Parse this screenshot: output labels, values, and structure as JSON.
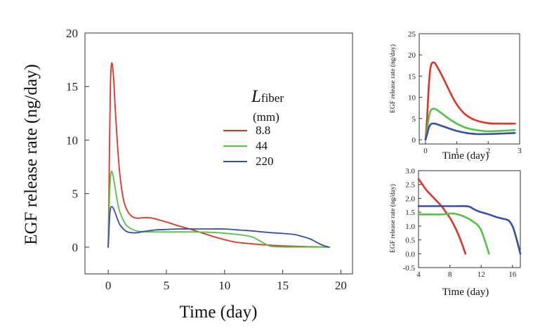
{
  "colors": {
    "red": "#e03327",
    "green": "#55c244",
    "blue": "#3650a2",
    "axis": "#333333"
  },
  "chart_data": [
    {
      "id": "main",
      "type": "line",
      "title": "",
      "xlabel": "Time (day)",
      "ylabel": "EGF release rate (ng/day)",
      "xlim": [
        -2,
        21
      ],
      "ylim": [
        -2.5,
        20
      ],
      "xticks": [
        0,
        5,
        10,
        15,
        20
      ],
      "xtick_labels": [
        "0",
        "5",
        "10",
        "15",
        "20"
      ],
      "yticks": [
        0,
        5,
        10,
        15,
        20
      ],
      "ytick_labels": [
        "0",
        "5",
        "10",
        "15",
        "20"
      ],
      "legend": {
        "title_main": "L",
        "title_sub": "fiber",
        "title_unit": "(mm)",
        "entries": [
          "8.8",
          "44",
          "220"
        ],
        "position": "upper-center"
      },
      "series": [
        {
          "name": "8.8",
          "color": "red",
          "x": [
            0,
            0.05,
            0.12,
            0.2,
            0.3,
            0.45,
            0.6,
            0.8,
            1.0,
            1.3,
            1.6,
            2.0,
            2.5,
            3.0,
            3.5,
            4.0,
            5.0,
            6.0,
            7.0,
            8.0,
            9.0,
            10.0,
            11.0,
            12.0,
            13.0,
            14.0,
            15.0,
            16.0,
            17.0,
            18.0,
            19.0
          ],
          "y": [
            0,
            4.0,
            10.0,
            15.5,
            17.2,
            16.0,
            13.0,
            9.5,
            6.8,
            4.5,
            3.5,
            2.9,
            2.7,
            2.75,
            2.75,
            2.65,
            2.35,
            2.0,
            1.7,
            1.35,
            1.0,
            0.7,
            0.45,
            0.35,
            0.25,
            0.18,
            0.12,
            0.08,
            0.05,
            0.03,
            0.0
          ]
        },
        {
          "name": "44",
          "color": "green",
          "x": [
            0,
            0.05,
            0.12,
            0.2,
            0.3,
            0.45,
            0.6,
            0.8,
            1.0,
            1.3,
            1.6,
            2.0,
            2.5,
            3.0,
            4.0,
            5.0,
            7.0,
            9.0,
            10.0,
            11.0,
            12.0,
            12.5,
            13.0,
            13.5,
            14.0,
            15.0,
            16.0,
            17.0,
            18.0,
            19.0
          ],
          "y": [
            0,
            2.0,
            5.0,
            6.6,
            7.1,
            6.5,
            5.5,
            4.2,
            3.3,
            2.5,
            2.0,
            1.7,
            1.5,
            1.45,
            1.42,
            1.42,
            1.42,
            1.38,
            1.3,
            1.2,
            1.05,
            0.9,
            0.6,
            0.3,
            0.08,
            0.02,
            0.01,
            0.01,
            0.01,
            0.0
          ]
        },
        {
          "name": "220",
          "color": "blue",
          "x": [
            0,
            0.05,
            0.12,
            0.2,
            0.3,
            0.45,
            0.6,
            0.8,
            1.0,
            1.3,
            1.6,
            2.0,
            2.5,
            3.0,
            4.0,
            5.0,
            6.0,
            7.0,
            8.0,
            9.0,
            10.0,
            11.0,
            12.0,
            13.0,
            14.0,
            15.0,
            16.0,
            16.5,
            17.0,
            17.5,
            18.0,
            18.5,
            19.0
          ],
          "y": [
            0,
            1.2,
            2.8,
            3.6,
            3.8,
            3.6,
            3.2,
            2.6,
            2.1,
            1.7,
            1.45,
            1.35,
            1.35,
            1.45,
            1.6,
            1.65,
            1.7,
            1.7,
            1.7,
            1.7,
            1.7,
            1.62,
            1.55,
            1.45,
            1.35,
            1.28,
            1.18,
            1.05,
            0.9,
            0.7,
            0.4,
            0.15,
            0.0
          ]
        }
      ]
    },
    {
      "id": "inset-top",
      "type": "line",
      "xlabel": "Time (day)",
      "ylabel": "EGF release rate (ng/day)",
      "xlim": [
        -0.2,
        3.0
      ],
      "ylim": [
        -1,
        25
      ],
      "xticks": [
        0,
        1,
        2,
        3
      ],
      "xtick_labels": [
        "0",
        "1",
        "2",
        "3"
      ],
      "yticks": [
        0,
        5,
        10,
        15,
        20,
        25
      ],
      "ytick_labels": [
        "0",
        "5",
        "10",
        "15",
        "20",
        "25"
      ],
      "series": [
        {
          "name": "8.8",
          "color": "red",
          "x": [
            0,
            0.05,
            0.1,
            0.15,
            0.2,
            0.28,
            0.35,
            0.5,
            0.7,
            0.9,
            1.1,
            1.3,
            1.6,
            2.0,
            2.4,
            2.85
          ],
          "y": [
            0,
            5.0,
            12.0,
            16.5,
            18.0,
            18.2,
            17.5,
            15.5,
            12.5,
            9.5,
            7.3,
            5.8,
            4.6,
            3.9,
            3.8,
            3.8
          ]
        },
        {
          "name": "44",
          "color": "green",
          "x": [
            0,
            0.05,
            0.1,
            0.15,
            0.2,
            0.28,
            0.35,
            0.5,
            0.7,
            0.9,
            1.1,
            1.3,
            1.6,
            2.0,
            2.4,
            2.85
          ],
          "y": [
            0,
            2.5,
            5.0,
            6.6,
            7.2,
            7.3,
            7.1,
            6.3,
            5.2,
            4.2,
            3.4,
            2.8,
            2.3,
            2.0,
            2.1,
            2.3
          ]
        },
        {
          "name": "220",
          "color": "blue",
          "x": [
            0,
            0.05,
            0.1,
            0.15,
            0.2,
            0.28,
            0.35,
            0.5,
            0.7,
            0.9,
            1.1,
            1.3,
            1.6,
            2.0,
            2.4,
            2.85
          ],
          "y": [
            0,
            1.3,
            2.7,
            3.5,
            3.8,
            3.8,
            3.7,
            3.3,
            2.8,
            2.3,
            1.9,
            1.6,
            1.35,
            1.35,
            1.45,
            1.6
          ]
        }
      ]
    },
    {
      "id": "inset-bottom",
      "type": "line",
      "xlabel": "Time (day)",
      "ylabel": "EGF release rate (ng/day)",
      "xlim": [
        4,
        17
      ],
      "ylim": [
        -0.5,
        3.0
      ],
      "xticks": [
        4,
        8,
        12,
        16
      ],
      "xtick_labels": [
        "4",
        "8",
        "12",
        "16"
      ],
      "yticks": [
        -0.5,
        0.0,
        0.5,
        1.0,
        1.5,
        2.0,
        2.5,
        3.0
      ],
      "ytick_labels": [
        "-0.5",
        "0.0",
        "0.5",
        "1.0",
        "1.5",
        "2.0",
        "2.5",
        "3.0"
      ],
      "series": [
        {
          "name": "8.8",
          "color": "red",
          "x": [
            4,
            4.5,
            5,
            5.5,
            6,
            6.5,
            7,
            7.5,
            8,
            8.5,
            9,
            9.5,
            10
          ],
          "y": [
            2.7,
            2.5,
            2.3,
            2.15,
            2.0,
            1.85,
            1.7,
            1.5,
            1.3,
            1.05,
            0.75,
            0.4,
            0.0
          ]
        },
        {
          "name": "44",
          "color": "green",
          "x": [
            4,
            5,
            6,
            7,
            8,
            8.5,
            9,
            9.5,
            10,
            10.5,
            11,
            11.5,
            12,
            12.5,
            13
          ],
          "y": [
            1.42,
            1.42,
            1.42,
            1.42,
            1.45,
            1.45,
            1.42,
            1.38,
            1.32,
            1.25,
            1.15,
            1.05,
            0.85,
            0.45,
            0.0
          ]
        },
        {
          "name": "220",
          "color": "blue",
          "x": [
            4,
            5,
            6,
            7,
            8,
            9,
            10,
            10.5,
            11,
            11.5,
            12,
            13,
            14,
            15,
            15.5,
            16,
            16.3,
            16.6,
            17
          ],
          "y": [
            1.72,
            1.72,
            1.72,
            1.72,
            1.72,
            1.72,
            1.72,
            1.7,
            1.62,
            1.55,
            1.5,
            1.42,
            1.32,
            1.25,
            1.2,
            1.0,
            0.75,
            0.45,
            0.0
          ]
        }
      ]
    }
  ]
}
